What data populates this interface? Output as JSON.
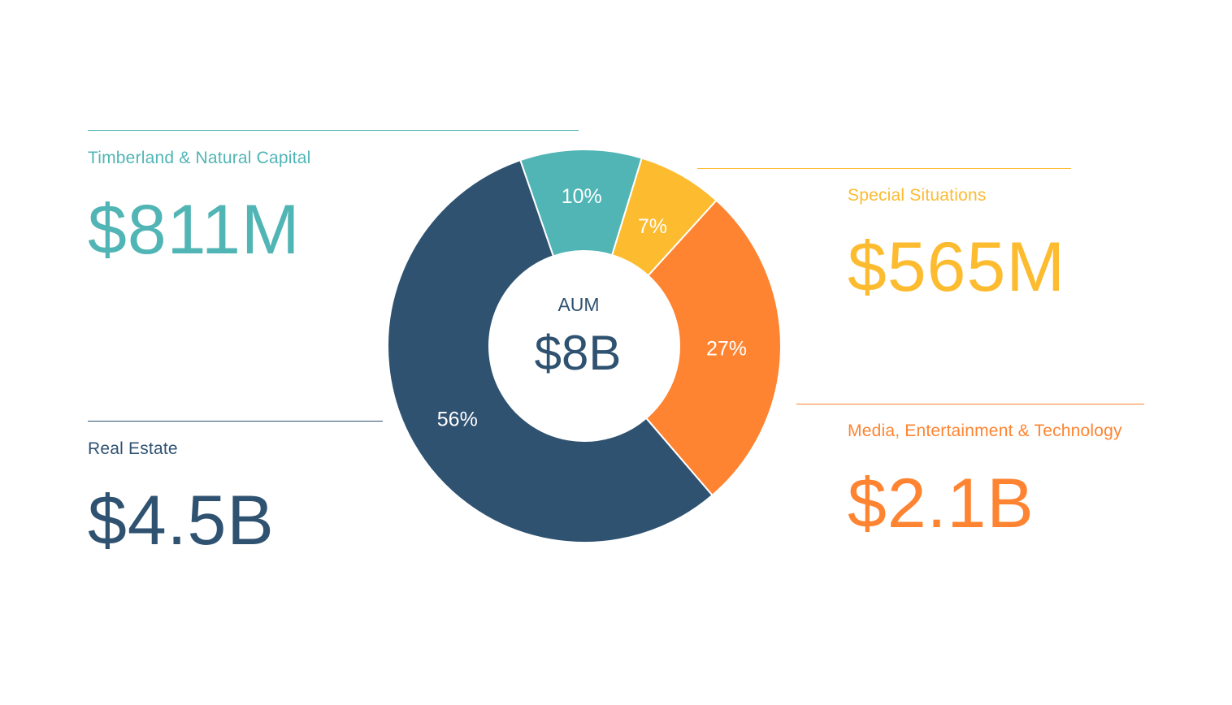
{
  "colors": {
    "timberland": "#52b5b5",
    "special": "#fdbb30",
    "media": "#fe8431",
    "realestate": "#2f5271"
  },
  "blocks": {
    "timberland": {
      "label": "Timberland & Natural Capital",
      "value": "$811M"
    },
    "special": {
      "label": "Special Situations",
      "value": "$565M"
    },
    "media": {
      "label": "Media, Entertainment & Technology",
      "value": "$2.1B"
    },
    "realestate": {
      "label": "Real Estate",
      "value": "$4.5B"
    }
  },
  "chart_data": {
    "type": "pie",
    "donut": true,
    "center_label": "AUM",
    "center_value": "$8B",
    "slices": [
      {
        "name": "Timberland & Natural Capital",
        "value": 10,
        "label": "10%",
        "color": "#52b5b5"
      },
      {
        "name": "Special Situations",
        "value": 7,
        "label": "7%",
        "color": "#fdbb30"
      },
      {
        "name": "Media, Entertainment & Technology",
        "value": 27,
        "label": "27%",
        "color": "#fe8431"
      },
      {
        "name": "Real Estate",
        "value": 56,
        "label": "56%",
        "color": "#2f5271"
      }
    ]
  }
}
